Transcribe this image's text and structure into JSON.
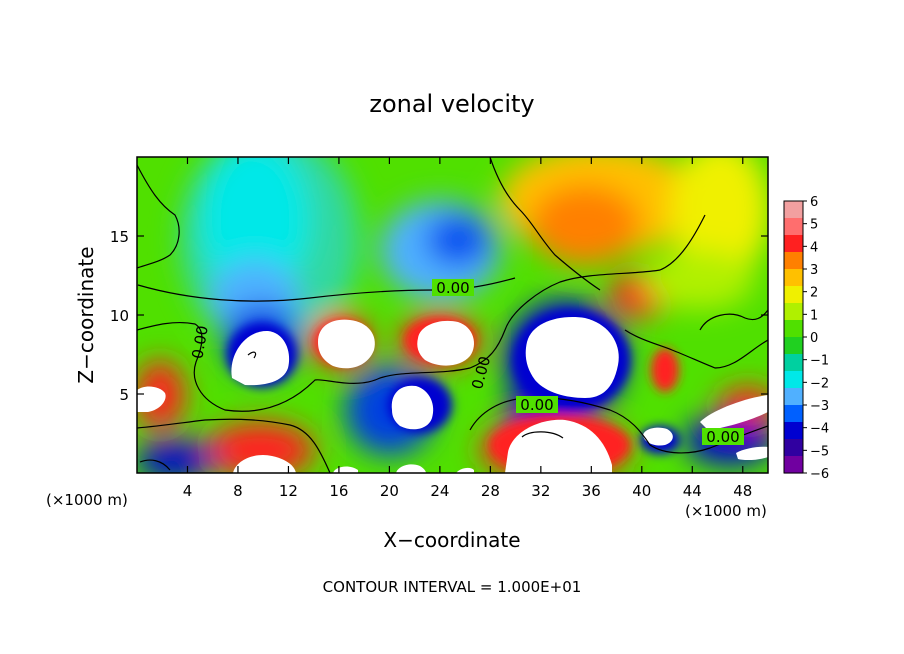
{
  "chart_data": {
    "type": "heatmap",
    "title": "zonal velocity",
    "xlabel": "X−coordinate",
    "ylabel": "Z−coordinate",
    "x_unit_left": "(×1000 m)",
    "x_unit_right": "(×1000 m)",
    "xlim": [
      0,
      50
    ],
    "ylim": [
      0,
      20
    ],
    "x_ticks": [
      "4",
      "8",
      "12",
      "16",
      "20",
      "24",
      "28",
      "32",
      "36",
      "40",
      "44",
      "48"
    ],
    "y_ticks": [
      "5",
      "10",
      "15"
    ],
    "x_tick_values": [
      4,
      8,
      12,
      16,
      20,
      24,
      28,
      32,
      36,
      40,
      44,
      48
    ],
    "y_tick_values": [
      5,
      10,
      15
    ],
    "contour_label": "0.00",
    "footer": "CONTOUR INTERVAL = 1.000E+01",
    "colorbar": {
      "labels": [
        "6",
        "5",
        "4",
        "3",
        "2",
        "1",
        "0",
        "−1",
        "−2",
        "−3",
        "−4",
        "−5",
        "−6"
      ],
      "colors": [
        "#f2a0a0",
        "#ff6e6e",
        "#ff2020",
        "#ff8000",
        "#ffc000",
        "#f0f000",
        "#b0f000",
        "#50e000",
        "#20d020",
        "#00d0a0",
        "#00e8e8",
        "#50b0ff",
        "#0060ff",
        "#0000d0",
        "#3000a0",
        "#7000a0"
      ]
    },
    "features": [
      {
        "x": 10,
        "z": 8,
        "kind": "saturated",
        "sign": "negative"
      },
      {
        "x": 19,
        "z": 8.5,
        "kind": "saturated",
        "sign": "positive"
      },
      {
        "x": 25.5,
        "z": 8.5,
        "kind": "saturated",
        "sign": "positive"
      },
      {
        "x": 23.5,
        "z": 4,
        "kind": "saturated",
        "sign": "negative"
      },
      {
        "x": 34.5,
        "z": 7.5,
        "kind": "saturated",
        "sign": "negative"
      },
      {
        "x": 33,
        "z": 2,
        "kind": "saturated",
        "sign": "positive"
      },
      {
        "x": 1.5,
        "z": 4.5,
        "kind": "saturated",
        "sign": "positive"
      },
      {
        "x": 10,
        "z": 1.5,
        "kind": "saturated",
        "sign": "positive"
      },
      {
        "x": 25.5,
        "z": 14.5,
        "kind": "minimum",
        "value": -4.5
      },
      {
        "x": 36,
        "z": 15,
        "kind": "maximum",
        "value": 3
      },
      {
        "x": 39.5,
        "z": 11.5,
        "kind": "maximum",
        "value": 4
      },
      {
        "x": 47,
        "z": 4,
        "kind": "maximum",
        "value": 5
      }
    ]
  }
}
